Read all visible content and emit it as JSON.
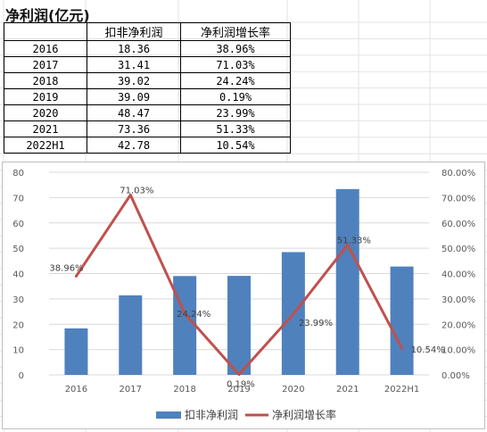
{
  "sheet": {
    "title": "净利润(亿元)",
    "headers": [
      "",
      "扣非净利润",
      "净利润增长率"
    ],
    "rows": [
      [
        "2016",
        "18.36",
        "38.96%"
      ],
      [
        "2017",
        "31.41",
        "71.03%"
      ],
      [
        "2018",
        "39.02",
        "24.24%"
      ],
      [
        "2019",
        "39.09",
        "0.19%"
      ],
      [
        "2020",
        "48.47",
        "23.99%"
      ],
      [
        "2021",
        "73.36",
        "51.33%"
      ],
      [
        "2022H1",
        "42.78",
        "10.54%"
      ]
    ]
  },
  "chart_data": {
    "type": "bar",
    "categories": [
      "2016",
      "2017",
      "2018",
      "2019",
      "2020",
      "2021",
      "2022H1"
    ],
    "series": [
      {
        "name": "扣非净利润",
        "type": "bar",
        "axis": "left",
        "color": "#4F81BD",
        "values": [
          18.36,
          31.41,
          39.02,
          39.09,
          48.47,
          73.36,
          42.78
        ]
      },
      {
        "name": "净利润增长率",
        "type": "line",
        "axis": "right",
        "color": "#C0504D",
        "values": [
          38.96,
          71.03,
          24.24,
          0.19,
          23.99,
          51.33,
          10.54
        ],
        "labels": [
          "38.96%",
          "71.03%",
          "24.24%",
          "0.19%",
          "23.99%",
          "51.33%",
          "10.54%"
        ]
      }
    ],
    "ylim_left": [
      0,
      80
    ],
    "left_ticks": [
      "0",
      "10",
      "20",
      "30",
      "40",
      "50",
      "60",
      "70",
      "80"
    ],
    "ylim_right": [
      0,
      80
    ],
    "right_ticks": [
      "0.00%",
      "10.00%",
      "20.00%",
      "30.00%",
      "40.00%",
      "50.00%",
      "60.00%",
      "70.00%",
      "80.00%"
    ],
    "grid": true,
    "legend": "bottom"
  }
}
